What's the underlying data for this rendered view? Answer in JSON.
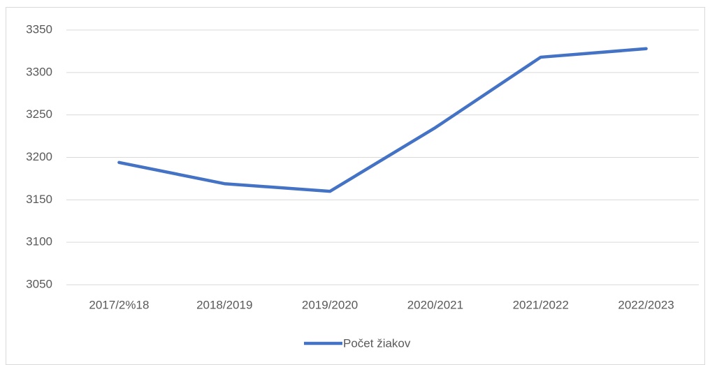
{
  "chart_data": {
    "type": "line",
    "categories": [
      "2017/2%18",
      "2018/2019",
      "2019/2020",
      "2020/2021",
      "2021/2022",
      "2022/2023"
    ],
    "series": [
      {
        "name": "Počet žiakov",
        "color": "#4472c4",
        "values": [
          3194,
          3169,
          3160,
          3235,
          3318,
          3328
        ]
      }
    ],
    "ylim": [
      3050,
      3350
    ],
    "yticks": [
      3050,
      3100,
      3150,
      3200,
      3250,
      3300,
      3350
    ],
    "grid": true,
    "legend": "bottom"
  }
}
